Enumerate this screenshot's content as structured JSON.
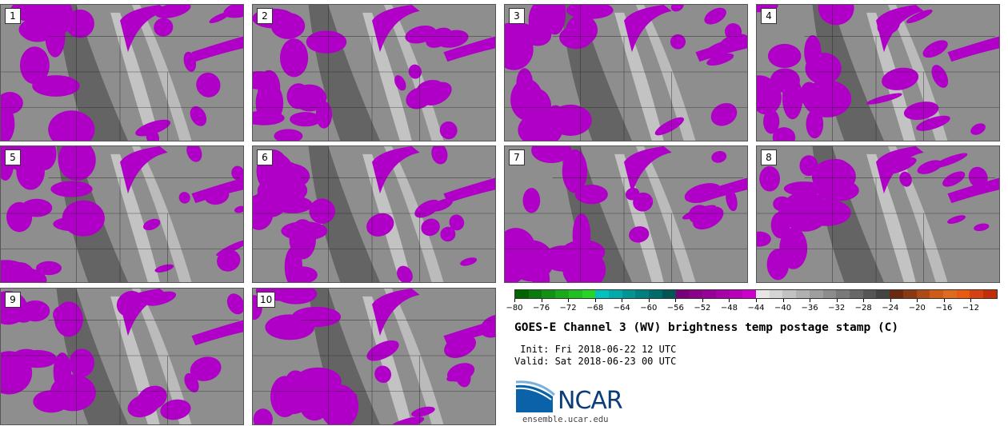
{
  "stamps": [
    {
      "label": "1"
    },
    {
      "label": "2"
    },
    {
      "label": "3"
    },
    {
      "label": "4"
    },
    {
      "label": "5"
    },
    {
      "label": "6"
    },
    {
      "label": "7"
    },
    {
      "label": "8"
    },
    {
      "label": "9"
    },
    {
      "label": "10"
    }
  ],
  "colorbar": {
    "min": -80,
    "max": -8,
    "step": 2,
    "tick_labels": [
      "-80",
      "-76",
      "-72",
      "-68",
      "-64",
      "-60",
      "-56",
      "-52",
      "-48",
      "-44",
      "-40",
      "-36",
      "-32",
      "-28",
      "-24",
      "-20",
      "-16",
      "-12"
    ],
    "tick_values": [
      -80,
      -76,
      -72,
      -68,
      -64,
      -60,
      -56,
      -52,
      -48,
      -44,
      -40,
      -36,
      -32,
      -28,
      -24,
      -20,
      -16,
      -12
    ],
    "colors": [
      "#006400",
      "#0a7a0a",
      "#129212",
      "#19aa19",
      "#20c020",
      "#25d525",
      "#00c0c0",
      "#00aaaa",
      "#009595",
      "#008080",
      "#006b6b",
      "#005555",
      "#7a007a",
      "#8a008a",
      "#99009a",
      "#aa00aa",
      "#bb00bb",
      "#cc00cc",
      "#e6e6e6",
      "#d4d4d4",
      "#c2c2c2",
      "#b0b0b0",
      "#9e9e9e",
      "#8c8c8c",
      "#7a7a7a",
      "#686868",
      "#565656",
      "#444444",
      "#6b2a0f",
      "#8a3a12",
      "#b04a15",
      "#d05a18",
      "#e06a20",
      "#e85a10",
      "#d84010",
      "#c03008"
    ]
  },
  "title": "GOES-E Channel 3 (WV) brightness temp postage stamp (C)",
  "init_text": " Init: Fri 2018-06-22 12 UTC",
  "valid_text": "Valid: Sat 2018-06-23 00 UTC",
  "logo": {
    "text": "NCAR",
    "url": "ensemble.ucar.edu"
  },
  "palette": {
    "magenta": "#b000c8",
    "dry": "#5a5a5a",
    "moist": "#c9c9c9",
    "mid": "#8e8e8e",
    "border": "#222222"
  }
}
